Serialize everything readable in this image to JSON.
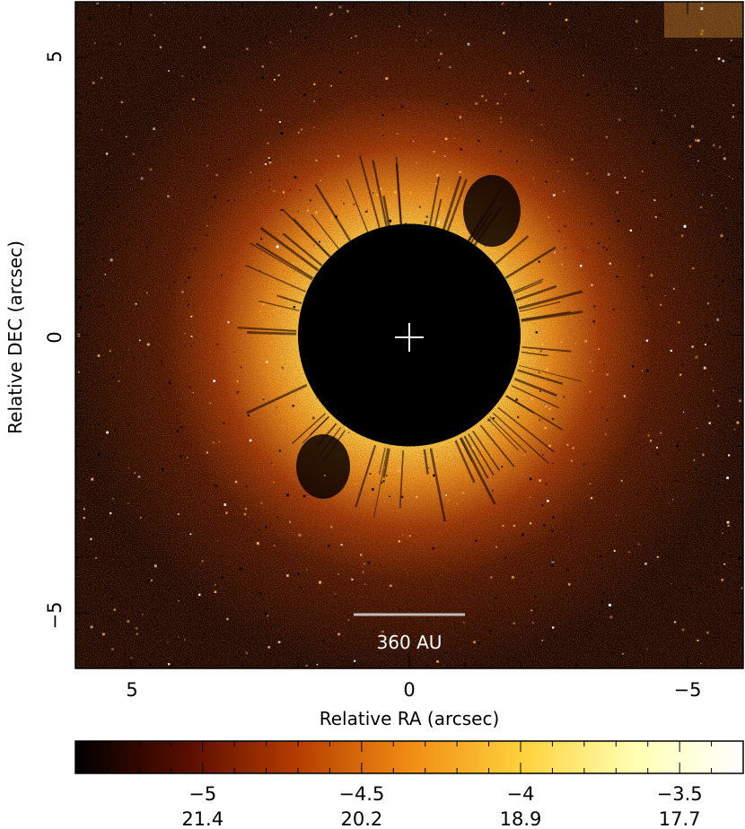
{
  "image": {
    "xlabel": "Relative RA (arcsec)",
    "ylabel": "Relative DEC (arcsec)",
    "x_ticks": [
      "5",
      "0",
      "−5"
    ],
    "y_ticks": [
      "5",
      "0",
      "−5"
    ],
    "xlim": [
      6,
      -6
    ],
    "ylim": [
      -6,
      6
    ],
    "mask_radius_arcsec": 2,
    "scale_bar": {
      "label": "360 AU",
      "length_arcsec": 2
    }
  },
  "colorbar": {
    "log_ticks": [
      "−5",
      "−4.5",
      "−4",
      "−3.5"
    ],
    "mag_ticks": [
      "21.4",
      "20.2",
      "18.9",
      "17.7"
    ],
    "log_values": [
      -5,
      -4.5,
      -4,
      -3.5
    ],
    "range": [
      -5.4,
      -3.3
    ],
    "colors": [
      "#000000",
      "#5a0e00",
      "#b43c00",
      "#f08c14",
      "#ffd23c",
      "#ffffb4",
      "#ffffff"
    ]
  }
}
